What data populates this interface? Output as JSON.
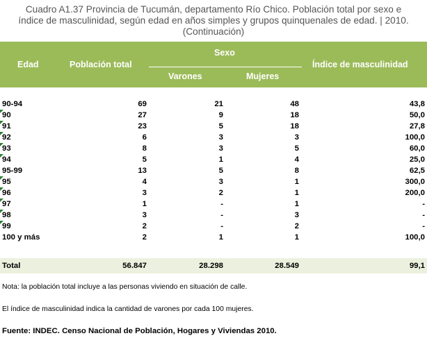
{
  "title": {
    "line1": "Cuadro A1.37 Provincia de Tucumán, departamento Río Chico. Población total por sexo e",
    "line2": "índice de masculinidad, según edad en años simples y grupos quinquenales de edad.  | 2010.",
    "line3": "(Continuación)"
  },
  "header": {
    "edad": "Edad",
    "poblacion_total": "Población total",
    "sexo": "Sexo",
    "varones": "Varones",
    "mujeres": "Mujeres",
    "indice": "Índice de masculinidad"
  },
  "rows": [
    {
      "edad": "90-94",
      "total": "69",
      "varones": "21",
      "mujeres": "48",
      "indice": "43,8",
      "marker": false
    },
    {
      "edad": "90",
      "total": "27",
      "varones": "9",
      "mujeres": "18",
      "indice": "50,0",
      "marker": true
    },
    {
      "edad": "91",
      "total": "23",
      "varones": "5",
      "mujeres": "18",
      "indice": "27,8",
      "marker": true
    },
    {
      "edad": "92",
      "total": "6",
      "varones": "3",
      "mujeres": "3",
      "indice": "100,0",
      "marker": true
    },
    {
      "edad": "93",
      "total": "8",
      "varones": "3",
      "mujeres": "5",
      "indice": "60,0",
      "marker": true
    },
    {
      "edad": "94",
      "total": "5",
      "varones": "1",
      "mujeres": "4",
      "indice": "25,0",
      "marker": true
    },
    {
      "edad": "95-99",
      "total": "13",
      "varones": "5",
      "mujeres": "8",
      "indice": "62,5",
      "marker": false
    },
    {
      "edad": "95",
      "total": "4",
      "varones": "3",
      "mujeres": "1",
      "indice": "300,0",
      "marker": true
    },
    {
      "edad": "96",
      "total": "3",
      "varones": "2",
      "mujeres": "1",
      "indice": "200,0",
      "marker": true
    },
    {
      "edad": "97",
      "total": "1",
      "varones": "-",
      "mujeres": "1",
      "indice": "-",
      "marker": true
    },
    {
      "edad": "98",
      "total": "3",
      "varones": "-",
      "mujeres": "3",
      "indice": "-",
      "marker": true
    },
    {
      "edad": "99",
      "total": "2",
      "varones": "-",
      "mujeres": "2",
      "indice": "-",
      "marker": true
    },
    {
      "edad": "100 y más",
      "total": "2",
      "varones": "1",
      "mujeres": "1",
      "indice": "100,0",
      "marker": false
    }
  ],
  "total": {
    "label": "Total",
    "total": "56.847",
    "varones": "28.298",
    "mujeres": "28.549",
    "indice": "99,1"
  },
  "notes": {
    "note1": "Nota: la población total incluye a las personas viviendo en situación de calle.",
    "note2": "El índice de masculinidad indica la cantidad de varones por cada 100 mujeres."
  },
  "source": "Fuente: INDEC. Censo Nacional de Población, Hogares y Viviendas 2010.",
  "colors": {
    "header_bg": "#9bbb59",
    "total_bg": "#ebf1de",
    "marker": "#2e7d32"
  }
}
